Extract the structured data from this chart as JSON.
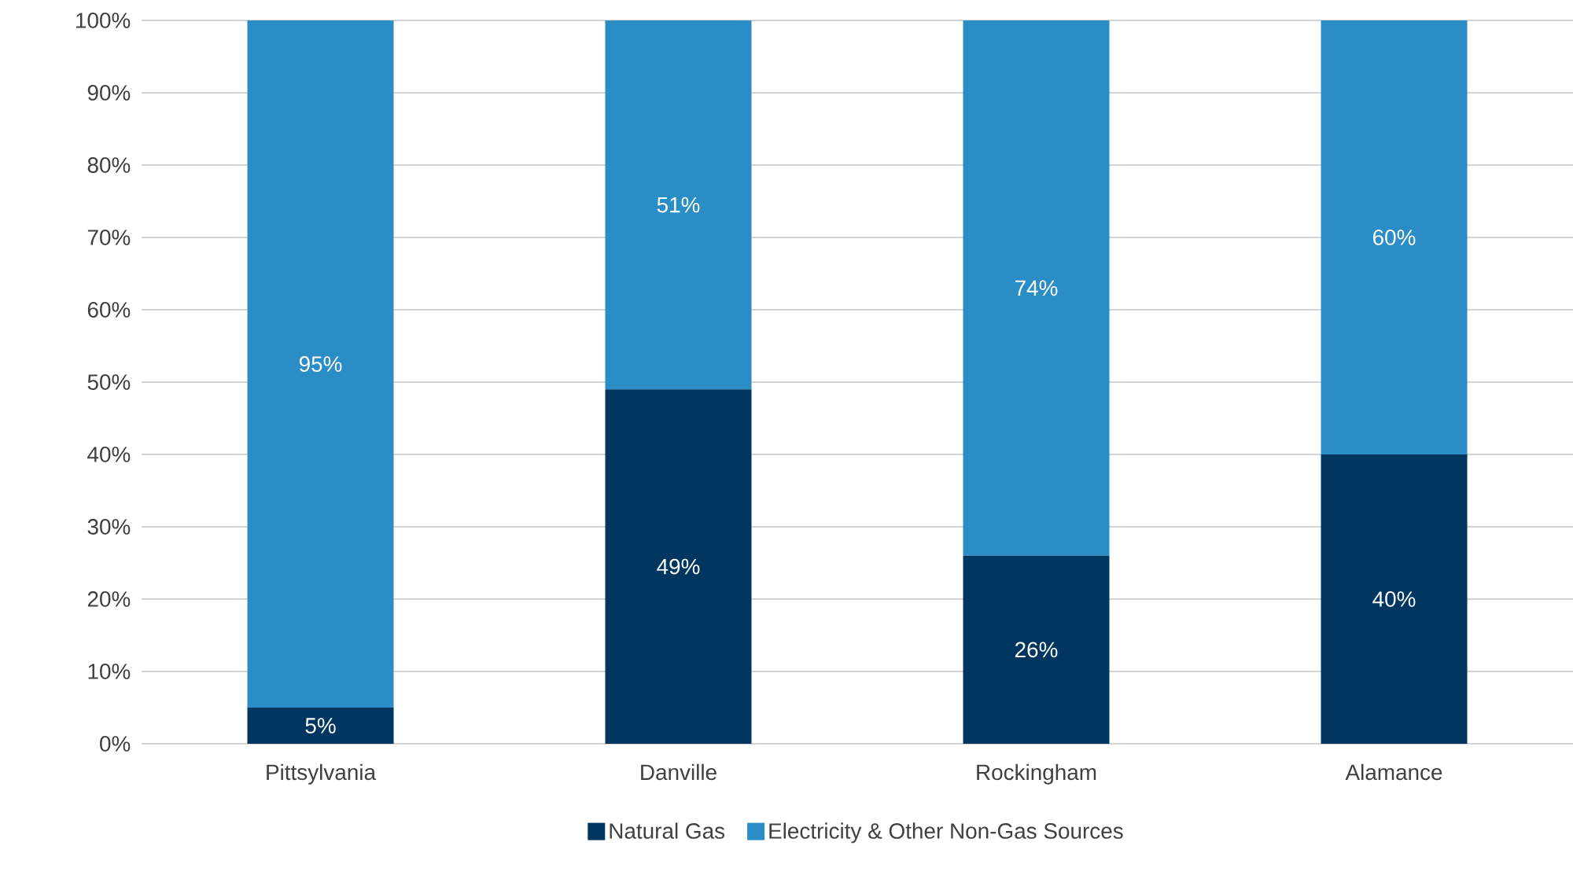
{
  "chart_data": {
    "type": "bar",
    "stacked": true,
    "categories": [
      "Pittsylvania",
      "Danville",
      "Rockingham",
      "Alamance"
    ],
    "series": [
      {
        "name": "Natural Gas",
        "color": "#003660",
        "values": [
          5,
          49,
          26,
          40
        ],
        "value_labels": [
          "5%",
          "49%",
          "26%",
          "40%"
        ]
      },
      {
        "name": "Electricity & Other Non-Gas Sources",
        "color": "#2a8dc5",
        "values": [
          95,
          51,
          74,
          60
        ],
        "value_labels": [
          "95%",
          "51%",
          "74%",
          "60%"
        ]
      }
    ],
    "ylim": [
      0,
      100
    ],
    "yticks": [
      {
        "value": 0,
        "label": "0%"
      },
      {
        "value": 10,
        "label": "10%"
      },
      {
        "value": 20,
        "label": "20%"
      },
      {
        "value": 30,
        "label": "30%"
      },
      {
        "value": 40,
        "label": "40%"
      },
      {
        "value": 50,
        "label": "50%"
      },
      {
        "value": 60,
        "label": "60%"
      },
      {
        "value": 70,
        "label": "70%"
      },
      {
        "value": 80,
        "label": "80%"
      },
      {
        "value": 90,
        "label": "90%"
      },
      {
        "value": 100,
        "label": "100%"
      }
    ],
    "grid": "y",
    "legend": "bottom"
  }
}
